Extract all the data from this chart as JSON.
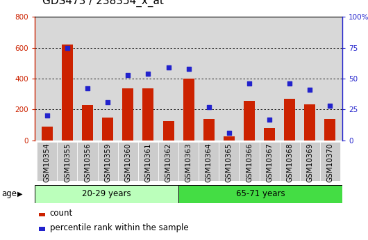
{
  "title": "GDS473 / 238354_x_at",
  "samples": [
    "GSM10354",
    "GSM10355",
    "GSM10356",
    "GSM10359",
    "GSM10360",
    "GSM10361",
    "GSM10362",
    "GSM10363",
    "GSM10364",
    "GSM10365",
    "GSM10366",
    "GSM10367",
    "GSM10368",
    "GSM10369",
    "GSM10370"
  ],
  "counts": [
    90,
    620,
    230,
    150,
    335,
    335,
    125,
    400,
    140,
    25,
    255,
    80,
    270,
    235,
    140
  ],
  "percentiles": [
    20,
    75,
    42,
    31,
    53,
    54,
    59,
    58,
    27,
    6,
    46,
    17,
    46,
    41,
    28
  ],
  "group1_label": "20-29 years",
  "group2_label": "65-71 years",
  "group1_count": 7,
  "group2_count": 8,
  "age_label": "age",
  "bar_color": "#cc2200",
  "scatter_color": "#2222cc",
  "group1_bg": "#bbffbb",
  "group2_bg": "#44dd44",
  "plot_bg": "#d8d8d8",
  "xticklabel_bg": "#cccccc",
  "ylim_left": [
    0,
    800
  ],
  "ylim_right": [
    0,
    100
  ],
  "yticks_left": [
    0,
    200,
    400,
    600,
    800
  ],
  "yticks_right": [
    0,
    25,
    50,
    75,
    100
  ],
  "legend_count_label": "count",
  "legend_pct_label": "percentile rank within the sample",
  "title_fontsize": 11,
  "tick_fontsize": 7.5,
  "legend_fontsize": 8.5
}
